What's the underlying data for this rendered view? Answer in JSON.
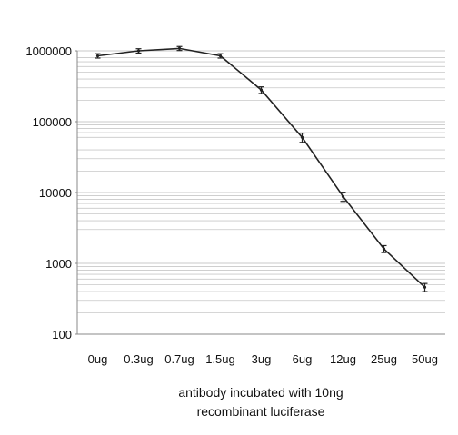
{
  "chart_data": {
    "type": "line",
    "categories": [
      "0ug",
      "0.3ug",
      "0.7ug",
      "1.5ug",
      "3ug",
      "6ug",
      "12ug",
      "25ug",
      "50ug"
    ],
    "series": [
      {
        "values": [
          850000,
          1000000,
          1080000,
          850000,
          280000,
          60000,
          8800,
          1600,
          460
        ],
        "error": [
          60000,
          70000,
          70000,
          60000,
          30000,
          9000,
          1300,
          180,
          60
        ]
      }
    ],
    "y_scale": "log",
    "ylim": [
      100,
      1000000
    ],
    "y_ticks": [
      "100",
      "1000",
      "10000",
      "100000",
      "1000000"
    ],
    "xlabel_lines": [
      "antibody incubated with 10ng",
      "recombinant luciferase"
    ],
    "grid": true,
    "line_color": "#222222",
    "grid_color": "#c8c8c8"
  }
}
